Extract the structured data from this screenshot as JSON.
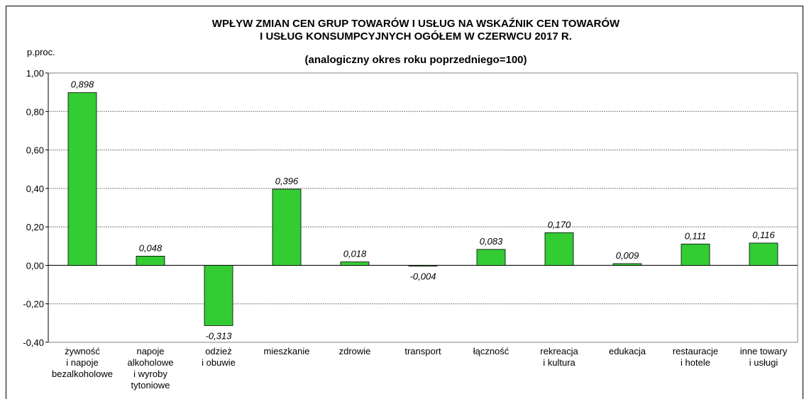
{
  "chart_data": {
    "type": "bar",
    "title": "WPŁYW ZMIAN CEN GRUP TOWARÓW I USŁUG NA WSKAŹNIK CEN TOWARÓW\nI USŁUG KONSUMPCYJNYCH OGÓŁEM W CZERWCU 2017 R.",
    "subtitle": "(analogiczny okres roku poprzedniego=100)",
    "y_label": "p.proc.",
    "categories": [
      "żywność\ni napoje\nbezalkoholowe",
      "napoje\nalkoholowe\ni wyroby\ntytoniowe",
      "odzież\ni obuwie",
      "mieszkanie",
      "zdrowie",
      "transport",
      "łączność",
      "rekreacja\ni kultura",
      "edukacja",
      "restauracje\ni hotele",
      "inne towary\ni usługi"
    ],
    "values": [
      0.898,
      0.048,
      -0.313,
      0.396,
      0.018,
      -0.004,
      0.083,
      0.17,
      0.009,
      0.111,
      0.116
    ],
    "value_labels": [
      "0,898",
      "0,048",
      "-0,313",
      "0,396",
      "0,018",
      "-0,004",
      "0,083",
      "0,170",
      "0,009",
      "0,111",
      "0,116"
    ],
    "color": "#33cc33",
    "ylim": [
      -0.4,
      1.0
    ],
    "yticks": [
      {
        "value": -0.4,
        "label": "-0,40"
      },
      {
        "value": -0.2,
        "label": "-0,20"
      },
      {
        "value": 0,
        "label": "0,00"
      },
      {
        "value": 0.2,
        "label": "0,20"
      },
      {
        "value": 0.4,
        "label": "0,40"
      },
      {
        "value": 0.6,
        "label": "0,60"
      },
      {
        "value": 0.8,
        "label": "0,80"
      },
      {
        "value": 1.0,
        "label": "1,00"
      }
    ],
    "grid": true
  }
}
